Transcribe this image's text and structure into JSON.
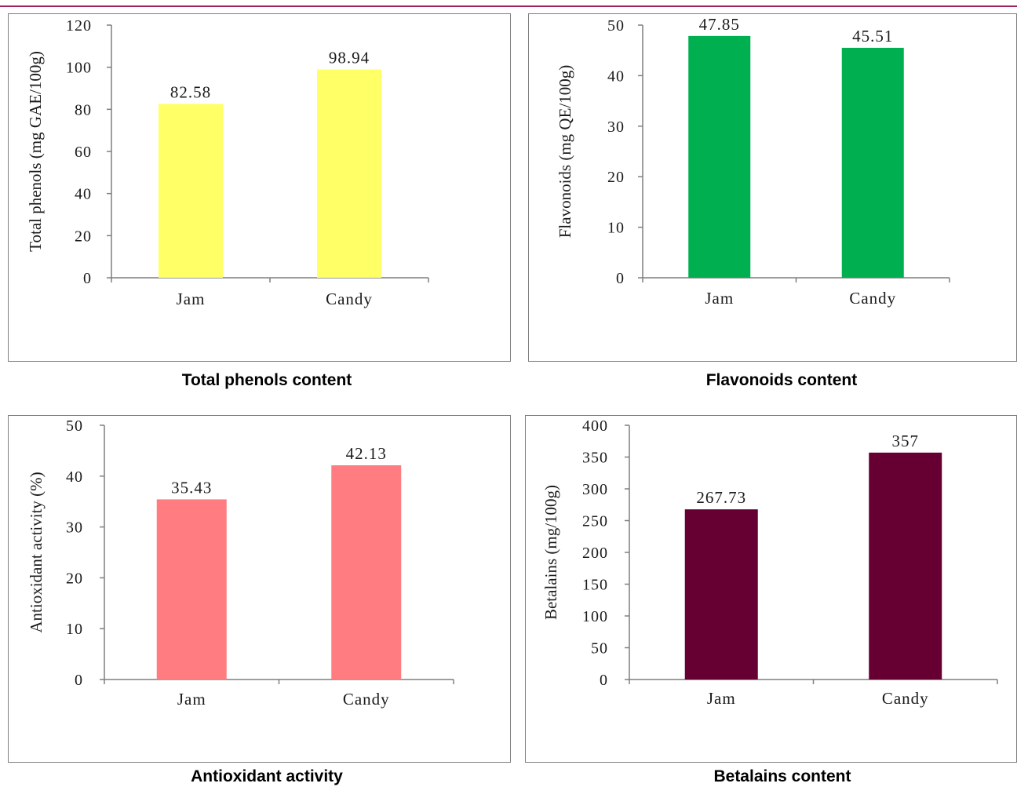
{
  "chart_data": [
    {
      "type": "bar",
      "categories": [
        "Jam",
        "Candy"
      ],
      "values": [
        82.58,
        98.94
      ],
      "value_labels": [
        "82.58",
        "98.94"
      ],
      "ylabel": "Total phenols (mg GAE/100g)",
      "ylim": [
        0,
        120
      ],
      "yticks": [
        0,
        20,
        40,
        60,
        80,
        100,
        120
      ],
      "color": "#ffff66",
      "caption": "Total phenols content",
      "grid": false,
      "legend": "none"
    },
    {
      "type": "bar",
      "categories": [
        "Jam",
        "Candy"
      ],
      "values": [
        47.85,
        45.51
      ],
      "value_labels": [
        "47.85",
        "45.51"
      ],
      "ylabel": "Flavonoids (mg QE/100g)",
      "ylim": [
        0,
        50
      ],
      "yticks": [
        0,
        10,
        20,
        30,
        40,
        50
      ],
      "color": "#00b050",
      "caption": "Flavonoids content",
      "grid": false,
      "legend": "none"
    },
    {
      "type": "bar",
      "categories": [
        "Jam",
        "Candy"
      ],
      "values": [
        35.43,
        42.13
      ],
      "value_labels": [
        "35.43",
        "42.13"
      ],
      "ylabel": "Antioxidant activity (%)",
      "ylim": [
        0,
        50
      ],
      "yticks": [
        0,
        10,
        20,
        30,
        40,
        50
      ],
      "color": "#ff7c80",
      "caption": "Antioxidant activity",
      "grid": false,
      "legend": "none"
    },
    {
      "type": "bar",
      "categories": [
        "Jam",
        "Candy"
      ],
      "values": [
        267.73,
        357
      ],
      "value_labels": [
        "267.73",
        "357"
      ],
      "ylabel": "Betalains (mg/100g)",
      "ylim": [
        0,
        400
      ],
      "yticks": [
        0,
        50,
        100,
        150,
        200,
        250,
        300,
        350,
        400
      ],
      "color": "#660033",
      "caption": "Betalains content",
      "grid": false,
      "legend": "none"
    }
  ]
}
